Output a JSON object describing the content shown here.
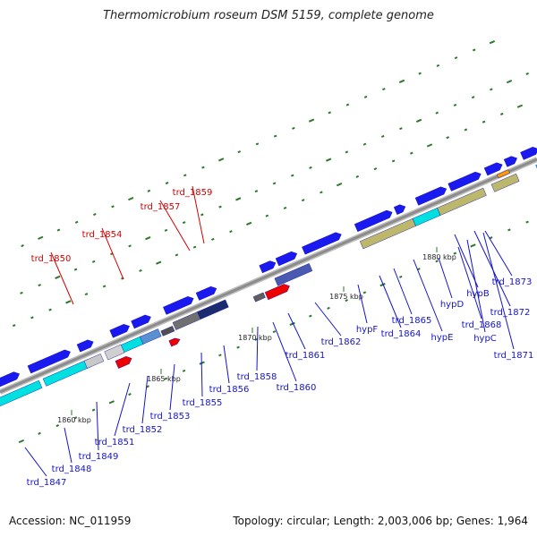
{
  "title": "Thermomicrobium roseum DSM 5159, complete genome",
  "footer": {
    "accession": "Accession: NC_011959",
    "summary": "Topology: circular; Length: 2,003,006 bp; Genes: 1,964"
  },
  "colors": {
    "forward_gene": "#1a1af0",
    "label_blue": "#1414c8",
    "label_red": "#d40000",
    "highlight_gene": "#ee0000",
    "backbone": "#8c8c8c",
    "tick": "#2a7a2a",
    "cyan": "#00e0e0",
    "khaki": "#bdb76b"
  },
  "position_ticks": [
    {
      "text": "1860 kbp"
    },
    {
      "text": "1865 kbp"
    },
    {
      "text": "1870 kbp"
    },
    {
      "text": "1875 kbp"
    },
    {
      "text": "1880 kbp"
    }
  ],
  "gene_labels": [
    {
      "text": "trd_1847",
      "color": "blue"
    },
    {
      "text": "trd_1848",
      "color": "blue"
    },
    {
      "text": "trd_1849",
      "color": "blue"
    },
    {
      "text": "trd_1850",
      "color": "red"
    },
    {
      "text": "trd_1851",
      "color": "blue"
    },
    {
      "text": "trd_1852",
      "color": "blue"
    },
    {
      "text": "trd_1853",
      "color": "blue"
    },
    {
      "text": "trd_1854",
      "color": "red"
    },
    {
      "text": "trd_1855",
      "color": "blue"
    },
    {
      "text": "trd_1856",
      "color": "blue"
    },
    {
      "text": "trd_1857",
      "color": "red"
    },
    {
      "text": "trd_1858",
      "color": "blue"
    },
    {
      "text": "trd_1859",
      "color": "red"
    },
    {
      "text": "trd_1860",
      "color": "blue"
    },
    {
      "text": "trd_1861",
      "color": "blue"
    },
    {
      "text": "trd_1862",
      "color": "blue"
    },
    {
      "text": "hypF",
      "color": "blue"
    },
    {
      "text": "trd_1864",
      "color": "blue"
    },
    {
      "text": "trd_1865",
      "color": "blue"
    },
    {
      "text": "hypE",
      "color": "blue"
    },
    {
      "text": "hypD",
      "color": "blue"
    },
    {
      "text": "trd_1868",
      "color": "blue"
    },
    {
      "text": "hypC",
      "color": "blue"
    },
    {
      "text": "hypB",
      "color": "blue"
    },
    {
      "text": "trd_1871",
      "color": "blue"
    },
    {
      "text": "trd_1872",
      "color": "blue"
    },
    {
      "text": "trd_1873",
      "color": "blue"
    }
  ]
}
